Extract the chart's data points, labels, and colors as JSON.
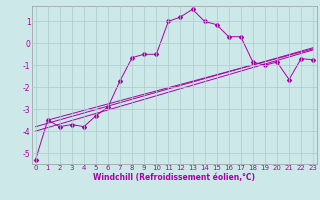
{
  "xlabel": "Windchill (Refroidissement éolien,°C)",
  "bg_color": "#cce8e8",
  "line_color": "#aa00aa",
  "grid_color": "#aacccc",
  "series1_x": [
    0,
    1,
    2,
    3,
    4,
    5,
    6,
    7,
    8,
    9,
    10,
    11,
    12,
    13,
    14,
    15,
    16,
    17,
    18,
    19,
    20,
    21,
    22,
    23
  ],
  "series1_y": [
    -5.3,
    -3.5,
    -3.8,
    -3.7,
    -3.8,
    -3.3,
    -2.9,
    -1.7,
    -0.65,
    -0.5,
    -0.5,
    1.0,
    1.2,
    1.55,
    1.0,
    0.85,
    0.3,
    0.3,
    -0.85,
    -1.0,
    -0.85,
    -1.65,
    -0.7,
    -0.75
  ],
  "series2_x": [
    0,
    23
  ],
  "series2_y": [
    -4.0,
    -0.3
  ],
  "series3_x": [
    0,
    23
  ],
  "series3_y": [
    -3.8,
    -0.2
  ],
  "series4_x": [
    1,
    23
  ],
  "series4_y": [
    -3.5,
    -0.25
  ],
  "ylim": [
    -5.5,
    1.7
  ],
  "xlim": [
    -0.3,
    23.3
  ],
  "yticks": [
    -5,
    -4,
    -3,
    -2,
    -1,
    0,
    1
  ],
  "xticks": [
    0,
    1,
    2,
    3,
    4,
    5,
    6,
    7,
    8,
    9,
    10,
    11,
    12,
    13,
    14,
    15,
    16,
    17,
    18,
    19,
    20,
    21,
    22,
    23
  ],
  "tick_fontsize": 5.0,
  "xlabel_fontsize": 5.5
}
